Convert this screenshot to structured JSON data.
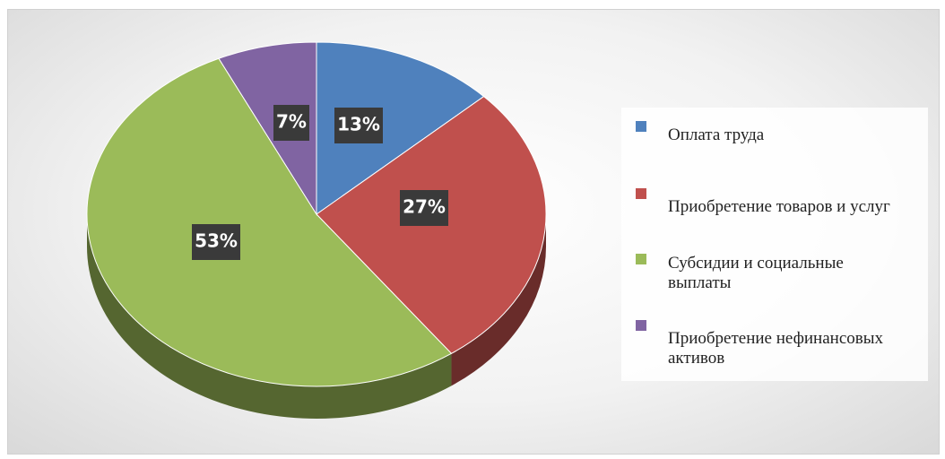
{
  "chart_data": {
    "type": "pie",
    "categories": [
      "Оплата труда",
      "Приобретение товаров и услуг",
      "Субсидии и социальные выплаты",
      "Приобретение нефинансовых активов"
    ],
    "values": [
      13,
      27,
      53,
      7
    ],
    "value_labels": [
      "13%",
      "27%",
      "53%",
      "7%"
    ],
    "colors": [
      "#4f81bd",
      "#c0504d",
      "#9bbb59",
      "#8064a2"
    ],
    "legend": "right"
  }
}
